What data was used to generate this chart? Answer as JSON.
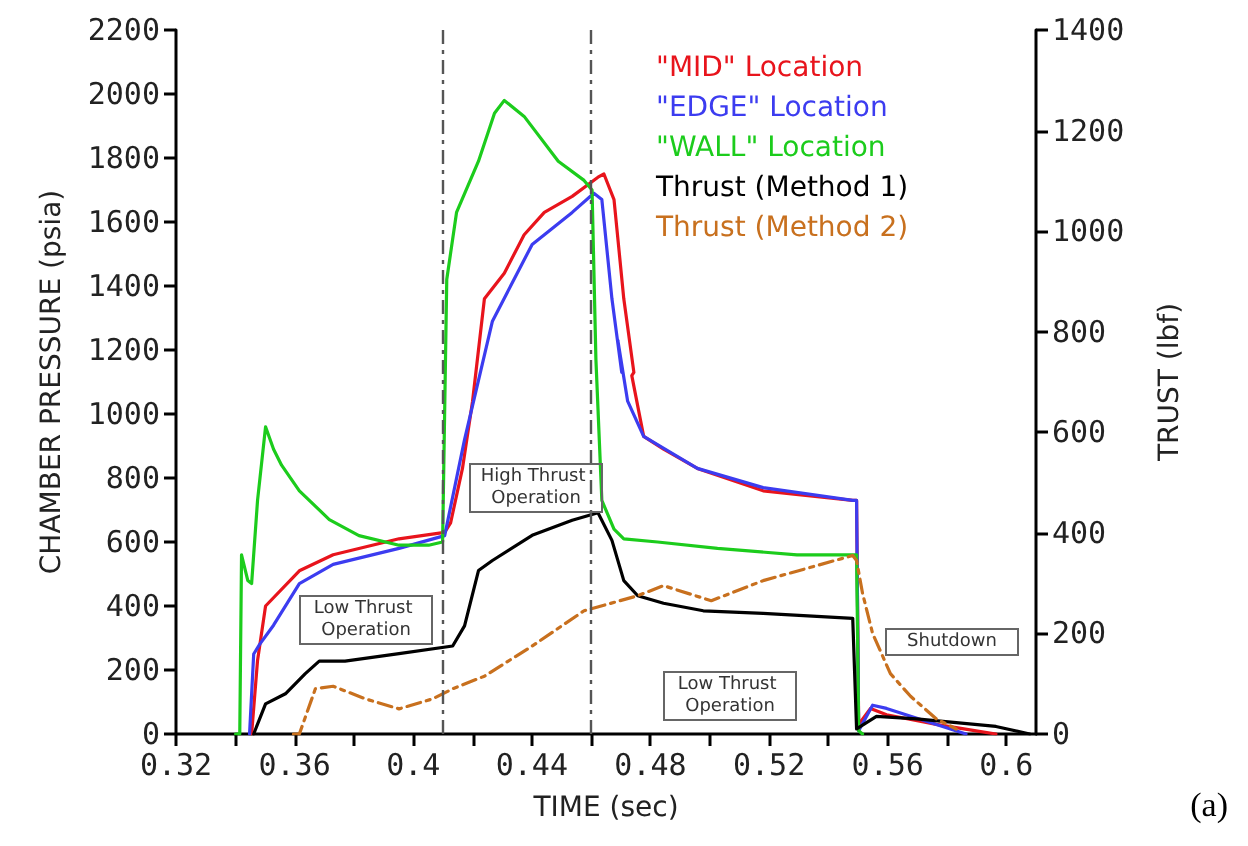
{
  "chart_data": {
    "type": "line",
    "xlabel": "TIME (sec)",
    "ylabel": "CHAMBER PRESSURE (psia)",
    "y2label": "TRUST (lbf)",
    "xlim": [
      0.32,
      0.61
    ],
    "xticks": [
      0.32,
      {
        "value": 0.34,
        "label": null
      },
      0.36,
      {
        "value": 0.38,
        "label": null
      },
      0.4,
      {
        "value": 0.42,
        "label": null
      },
      0.44,
      {
        "value": 0.46,
        "label": null
      },
      0.48,
      {
        "value": 0.5,
        "label": null
      },
      0.52,
      {
        "value": 0.54,
        "label": null
      },
      0.56,
      {
        "value": 0.58,
        "label": null
      },
      0.6
    ],
    "ylim": [
      0,
      2200
    ],
    "yticks": [
      0,
      200,
      400,
      600,
      800,
      1000,
      1200,
      1400,
      1600,
      1800,
      2000,
      2200
    ],
    "y2lim": [
      0,
      1400
    ],
    "y2ticks": [
      0,
      200,
      400,
      600,
      800,
      1000,
      1200,
      1400
    ],
    "grid": false,
    "legend": "top right",
    "marker": "none",
    "series": [
      {
        "name": "\"MID\" Location",
        "color": "#e8141c",
        "x": [
          0.3455,
          0.3475,
          0.3502,
          0.3616,
          0.373,
          0.3952,
          0.4106,
          0.4126,
          0.4166,
          0.42,
          0.424,
          0.4307,
          0.4374,
          0.4442,
          0.4536,
          0.4623,
          0.4643,
          0.4677,
          0.471,
          0.4744,
          0.4737,
          0.4777,
          0.4844,
          0.4958,
          0.518,
          0.5482,
          0.5495,
          0.5502,
          0.5542,
          0.5596,
          0.5764,
          0.5898,
          0.5965
        ],
        "values": [
          0,
          230,
          400,
          510,
          560,
          610,
          630,
          660,
          830,
          1040,
          1360,
          1440,
          1560,
          1630,
          1680,
          1740,
          1750,
          1670,
          1360,
          1130,
          1120,
          930,
          890,
          830,
          760,
          730,
          730,
          30,
          80,
          60,
          30,
          10,
          0
        ]
      },
      {
        "name": "\"EDGE\" Location",
        "color": "#3c3cf0",
        "x": [
          0.3448,
          0.3462,
          0.3482,
          0.3529,
          0.3616,
          0.373,
          0.3952,
          0.4106,
          0.4173,
          0.4267,
          0.4401,
          0.4536,
          0.4609,
          0.4636,
          0.467,
          0.4703,
          0.469,
          0.4723,
          0.4777,
          0.4958,
          0.518,
          0.5482,
          0.5495,
          0.5502,
          0.5549,
          0.5596,
          0.5764,
          0.5864
        ],
        "values": [
          0,
          250,
          280,
          340,
          470,
          530,
          580,
          620,
          920,
          1290,
          1530,
          1630,
          1690,
          1670,
          1360,
          1130,
          1230,
          1040,
          930,
          830,
          770,
          730,
          730,
          10,
          90,
          80,
          30,
          0
        ]
      },
      {
        "name": "\"WALL\" Location",
        "color": "#1ccc1c",
        "x": [
          0.3401,
          0.3415,
          0.3421,
          0.3442,
          0.3455,
          0.3475,
          0.3502,
          0.3529,
          0.3556,
          0.3616,
          0.3717,
          0.3817,
          0.3952,
          0.4052,
          0.4099,
          0.4113,
          0.4146,
          0.422,
          0.4274,
          0.4307,
          0.4374,
          0.4489,
          0.4576,
          0.4603,
          0.4616,
          0.4636,
          0.4677,
          0.471,
          0.4824,
          0.5026,
          0.5294,
          0.5495,
          0.5502,
          0.5515
        ],
        "values": [
          0,
          0,
          560,
          480,
          470,
          730,
          960,
          890,
          840,
          760,
          670,
          620,
          590,
          590,
          600,
          1420,
          1630,
          1790,
          1940,
          1980,
          1930,
          1790,
          1730,
          1700,
          1170,
          730,
          640,
          610,
          600,
          580,
          560,
          560,
          10,
          0
        ]
      },
      {
        "name": "Thrust (Method 1)",
        "color": "#000000",
        "axis": "y2",
        "x": [
          0.3462,
          0.3502,
          0.3569,
          0.3636,
          0.3683,
          0.377,
          0.3952,
          0.4133,
          0.4173,
          0.422,
          0.4267,
          0.4401,
          0.4536,
          0.4623,
          0.467,
          0.471,
          0.4757,
          0.4844,
          0.4978,
          0.518,
          0.5482,
          0.5495,
          0.5562,
          0.5697,
          0.5965,
          0.6079
        ],
        "values": [
          0,
          60,
          80,
          120,
          145,
          145,
          160,
          175,
          215,
          325,
          345,
          395,
          425,
          440,
          385,
          305,
          275,
          260,
          245,
          240,
          230,
          10,
          35,
          30,
          15,
          0
        ]
      },
      {
        "name": "Thrust (Method 2)",
        "color": "#c8701e",
        "axis": "y2",
        "line_style": "dashed",
        "x": [
          0.3596,
          0.3616,
          0.367,
          0.373,
          0.3838,
          0.3952,
          0.4066,
          0.4133,
          0.424,
          0.4401,
          0.4576,
          0.4757,
          0.4844,
          0.5005,
          0.518,
          0.5482,
          0.5495,
          0.5515,
          0.5549,
          0.5609,
          0.5677,
          0.5764,
          0.5831
        ],
        "values": [
          0,
          0,
          90,
          95,
          70,
          50,
          70,
          90,
          115,
          175,
          245,
          275,
          295,
          265,
          305,
          355,
          345,
          280,
          200,
          120,
          75,
          30,
          10
        ]
      }
    ],
    "annotations": [
      "Low Thrust Operation",
      "High Thrust Operation",
      "Low Thrust Operation",
      "Shutdown",
      "(a)"
    ],
    "ref_lines": [
      {
        "axis": "x",
        "value": 0.41,
        "line_style": "dashed",
        "color": "#555555"
      },
      {
        "axis": "x",
        "value": 0.46,
        "line_style": "dashed",
        "color": "#555555"
      }
    ]
  }
}
